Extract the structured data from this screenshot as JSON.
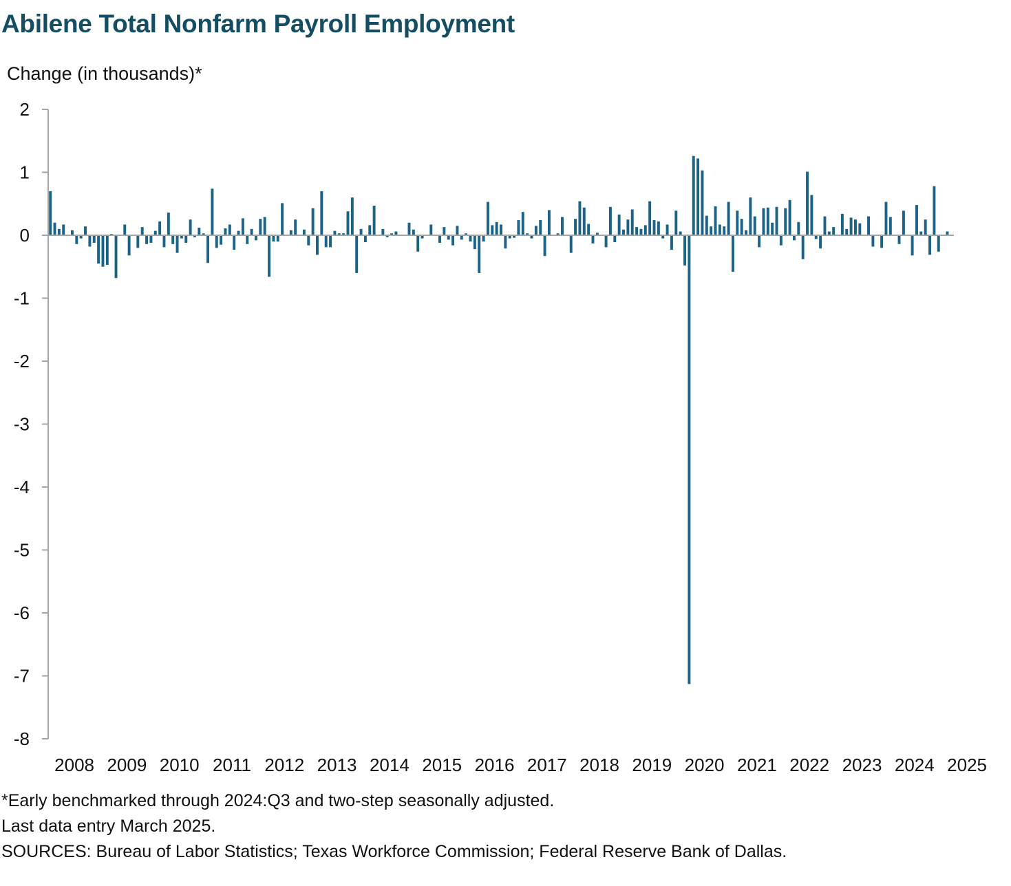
{
  "title": "Abilene Total Nonfarm Payroll Employment",
  "chart_data": {
    "type": "bar",
    "ylabel": "Change (in thousands)*",
    "xlabel": "",
    "ylim": [
      -8,
      2
    ],
    "yticks": [
      "2",
      "1",
      "0",
      "-1",
      "-2",
      "-3",
      "-4",
      "-5",
      "-6",
      "-7",
      "-8"
    ],
    "x_tick_labels": [
      "2008",
      "2009",
      "2010",
      "2011",
      "2012",
      "2013",
      "2014",
      "2015",
      "2016",
      "2017",
      "2018",
      "2019",
      "2020",
      "2021",
      "2022",
      "2023",
      "2024",
      "2025"
    ],
    "start": "2008-01",
    "end": "2025-03",
    "frequency": "monthly",
    "grid": false,
    "legend": "none",
    "bar_color": "#1d6287",
    "values": [
      0.7,
      0.2,
      0.1,
      0.17,
      0.0,
      0.08,
      -0.14,
      -0.05,
      0.14,
      -0.18,
      -0.12,
      -0.45,
      -0.5,
      -0.47,
      0.02,
      -0.68,
      0.0,
      0.17,
      -0.32,
      0.0,
      -0.2,
      0.13,
      -0.14,
      -0.12,
      0.07,
      0.22,
      -0.19,
      0.36,
      -0.14,
      -0.28,
      -0.05,
      -0.12,
      0.25,
      -0.03,
      0.12,
      0.03,
      -0.44,
      0.74,
      -0.2,
      -0.15,
      0.11,
      0.17,
      -0.23,
      0.07,
      0.27,
      -0.14,
      0.1,
      -0.08,
      0.26,
      0.29,
      -0.66,
      -0.1,
      -0.1,
      0.51,
      0.0,
      0.08,
      0.25,
      0.0,
      0.09,
      -0.16,
      0.43,
      -0.31,
      0.7,
      -0.19,
      -0.19,
      0.07,
      0.03,
      0.03,
      0.38,
      0.6,
      -0.6,
      0.1,
      -0.11,
      0.16,
      0.47,
      0.0,
      0.1,
      -0.03,
      0.03,
      0.06,
      0.0,
      0.0,
      0.2,
      0.09,
      -0.26,
      -0.05,
      0.0,
      0.17,
      0.0,
      -0.12,
      0.13,
      -0.07,
      -0.16,
      0.15,
      -0.07,
      0.03,
      -0.1,
      -0.22,
      -0.6,
      -0.1,
      0.53,
      0.16,
      0.21,
      0.17,
      -0.21,
      -0.05,
      -0.04,
      0.24,
      0.37,
      0.03,
      -0.05,
      0.15,
      0.24,
      -0.33,
      0.4,
      0.0,
      0.03,
      0.29,
      0.0,
      -0.28,
      0.26,
      0.54,
      0.44,
      0.18,
      -0.13,
      0.04,
      0.0,
      -0.19,
      0.45,
      -0.11,
      0.33,
      0.09,
      0.25,
      0.41,
      0.13,
      0.1,
      0.16,
      0.54,
      0.24,
      0.22,
      -0.05,
      0.17,
      -0.23,
      0.39,
      0.06,
      -0.48,
      -7.13,
      1.26,
      1.22,
      1.03,
      0.31,
      0.14,
      0.46,
      0.17,
      0.14,
      0.53,
      -0.58,
      0.39,
      0.26,
      0.08,
      0.6,
      0.3,
      -0.19,
      0.43,
      0.44,
      0.2,
      0.45,
      -0.16,
      0.43,
      0.56,
      -0.08,
      0.21,
      -0.38,
      1.01,
      0.64,
      -0.06,
      -0.21,
      0.3,
      0.06,
      0.13,
      0.0,
      0.34,
      0.1,
      0.28,
      0.25,
      0.19,
      0.0,
      0.3,
      -0.18,
      0.0,
      -0.2,
      0.53,
      0.29,
      0.0,
      -0.14,
      0.39,
      0.0,
      -0.32,
      0.48,
      0.06,
      0.25,
      -0.31,
      0.78,
      -0.26,
      0.0,
      0.06,
      0.0
    ]
  },
  "notes": [
    "*Early benchmarked through 2024:Q3 and two-step seasonally adjusted.",
    "Last data entry March 2025.",
    "SOURCES: Bureau of Labor Statistics; Texas Workforce Commission; Federal Reserve Bank of Dallas."
  ]
}
